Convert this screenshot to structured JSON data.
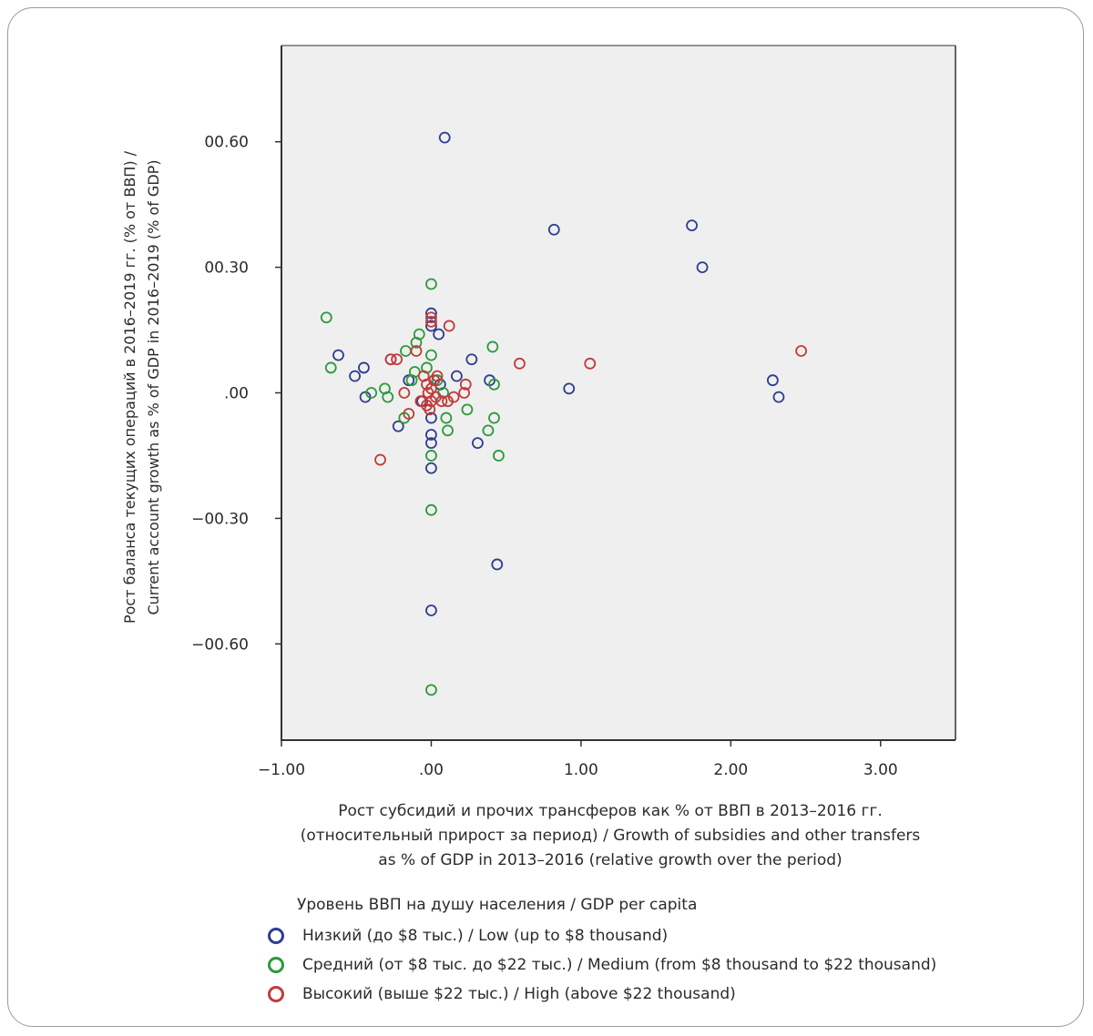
{
  "chart_data": {
    "type": "scatter",
    "title": "",
    "xlabel": [
      "Рост субсидий и прочих трансферов как % от ВВП в 2013–2016 гг.",
      "(относительный прирост за период) / Growth of subsidies and other transfers",
      "as % of GDP in 2013–2016 (relative growth over the period)"
    ],
    "ylabel": [
      "Рост баланса текущих операций в 2016–2019 гг. (% от ВВП) /",
      "Current account growth as % of GDP in 2016–2019 (% of GDP)"
    ],
    "xlim": [
      -1.0,
      3.5
    ],
    "ylim": [
      -0.83,
      0.83
    ],
    "xticks": [
      -1.0,
      0.0,
      1.0,
      2.0,
      3.0
    ],
    "xtick_labels": [
      "−1.00",
      ".00",
      "1.00",
      "2.00",
      "3.00"
    ],
    "yticks": [
      0.6,
      0.3,
      0.0,
      -0.3,
      -0.6
    ],
    "ytick_labels": [
      "00.60",
      "00.30",
      ".00",
      "−00.30",
      "−00.60"
    ],
    "grid": false,
    "plot_background": "#efefef",
    "marker": "hollow-circle",
    "legend": {
      "title": "Уровень ВВП на душу населения / GDP per capita",
      "placement": "bottom-left"
    },
    "series": [
      {
        "name": "Низкий (до $8 тыс.) / Low (up to $8 thousand)",
        "color": "#2e3d8f",
        "points": [
          [
            0.09,
            0.61
          ],
          [
            0.82,
            0.39
          ],
          [
            1.74,
            0.4
          ],
          [
            1.81,
            0.3
          ],
          [
            0.0,
            0.19
          ],
          [
            0.0,
            0.16
          ],
          [
            0.05,
            0.14
          ],
          [
            -0.62,
            0.09
          ],
          [
            -0.45,
            0.06
          ],
          [
            -0.51,
            0.04
          ],
          [
            -0.27,
            0.08
          ],
          [
            -0.44,
            -0.01
          ],
          [
            0.27,
            0.08
          ],
          [
            0.17,
            0.04
          ],
          [
            0.39,
            0.03
          ],
          [
            0.92,
            0.01
          ],
          [
            2.28,
            0.03
          ],
          [
            2.32,
            -0.01
          ],
          [
            -0.22,
            -0.08
          ],
          [
            -0.06,
            -0.02
          ],
          [
            0.0,
            -0.1
          ],
          [
            0.0,
            -0.12
          ],
          [
            0.0,
            -0.18
          ],
          [
            0.31,
            -0.12
          ],
          [
            0.44,
            -0.41
          ],
          [
            0.0,
            -0.52
          ],
          [
            -0.15,
            0.03
          ],
          [
            0.06,
            0.02
          ],
          [
            0.0,
            -0.06
          ]
        ]
      },
      {
        "name": "Средний (от $8 тыс. до $22 тыс.) / Medium (from $8 thousand to $22 thousand)",
        "color": "#2c9a3c",
        "points": [
          [
            0.0,
            0.26
          ],
          [
            -0.7,
            0.18
          ],
          [
            -0.67,
            0.06
          ],
          [
            -0.08,
            0.14
          ],
          [
            -0.1,
            0.12
          ],
          [
            -0.17,
            0.1
          ],
          [
            0.41,
            0.11
          ],
          [
            -0.4,
            0.0
          ],
          [
            -0.31,
            0.01
          ],
          [
            -0.29,
            -0.01
          ],
          [
            -0.13,
            0.03
          ],
          [
            -0.11,
            0.05
          ],
          [
            0.0,
            0.09
          ],
          [
            0.42,
            0.02
          ],
          [
            0.24,
            -0.04
          ],
          [
            0.1,
            -0.06
          ],
          [
            0.42,
            -0.06
          ],
          [
            0.38,
            -0.09
          ],
          [
            0.11,
            -0.09
          ],
          [
            0.0,
            -0.15
          ],
          [
            0.45,
            -0.15
          ],
          [
            0.0,
            -0.28
          ],
          [
            0.0,
            -0.71
          ],
          [
            -0.18,
            -0.06
          ],
          [
            0.04,
            0.03
          ],
          [
            -0.03,
            0.06
          ],
          [
            0.08,
            0.0
          ]
        ]
      },
      {
        "name": "Высокий (выше $22 тыс.) / High (above $22 thousand)",
        "color": "#c23b3b",
        "points": [
          [
            2.47,
            0.1
          ],
          [
            1.06,
            0.07
          ],
          [
            0.59,
            0.07
          ],
          [
            0.12,
            0.16
          ],
          [
            0.0,
            0.18
          ],
          [
            0.0,
            0.17
          ],
          [
            -0.27,
            0.08
          ],
          [
            -0.23,
            0.08
          ],
          [
            -0.1,
            0.1
          ],
          [
            -0.34,
            -0.16
          ],
          [
            0.23,
            0.02
          ],
          [
            0.22,
            0.0
          ],
          [
            0.15,
            -0.01
          ],
          [
            0.11,
            -0.02
          ],
          [
            -0.18,
            0.0
          ],
          [
            -0.15,
            -0.05
          ],
          [
            -0.05,
            0.04
          ],
          [
            -0.03,
            0.02
          ],
          [
            -0.02,
            0.0
          ],
          [
            0.0,
            -0.02
          ],
          [
            -0.03,
            -0.03
          ],
          [
            0.02,
            0.03
          ],
          [
            0.03,
            -0.01
          ],
          [
            -0.07,
            -0.02
          ],
          [
            0.07,
            -0.02
          ],
          [
            0.0,
            0.01
          ],
          [
            0.04,
            0.04
          ],
          [
            -0.01,
            -0.04
          ]
        ]
      }
    ]
  }
}
